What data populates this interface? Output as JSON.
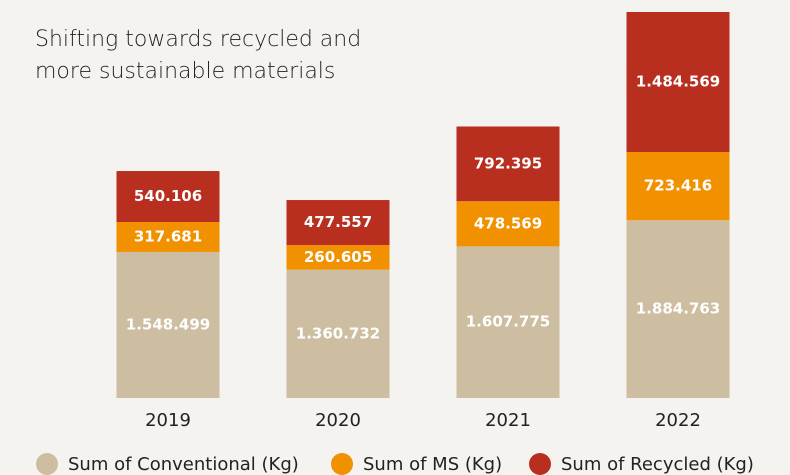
{
  "chart_data": {
    "type": "stacked_bar",
    "title": "Shifting towards recycled and more sustainable materials",
    "categories": [
      "2019",
      "2020",
      "2021",
      "2022"
    ],
    "series": [
      {
        "name": "Sum of Conventional (Kg)",
        "color": "#cdbda1",
        "values": [
          1548499,
          1360732,
          1607775,
          1884763
        ],
        "value_labels": [
          "1.548.499",
          "1.360.732",
          "1.607.775",
          "1.884.763"
        ]
      },
      {
        "name": "Sum of MS (Kg)",
        "color": "#f29100",
        "values": [
          317681,
          260605,
          478569,
          723416
        ],
        "value_labels": [
          "317.681",
          "260.605",
          "478.569",
          "723.416"
        ]
      },
      {
        "name": "Sum of Recycled (Kg)",
        "color": "#b82e1f",
        "values": [
          540106,
          477557,
          792395,
          1484569
        ],
        "value_labels": [
          "540.106",
          "477.557",
          "792.395",
          "1.484.569"
        ]
      }
    ],
    "legend": "bottom"
  }
}
